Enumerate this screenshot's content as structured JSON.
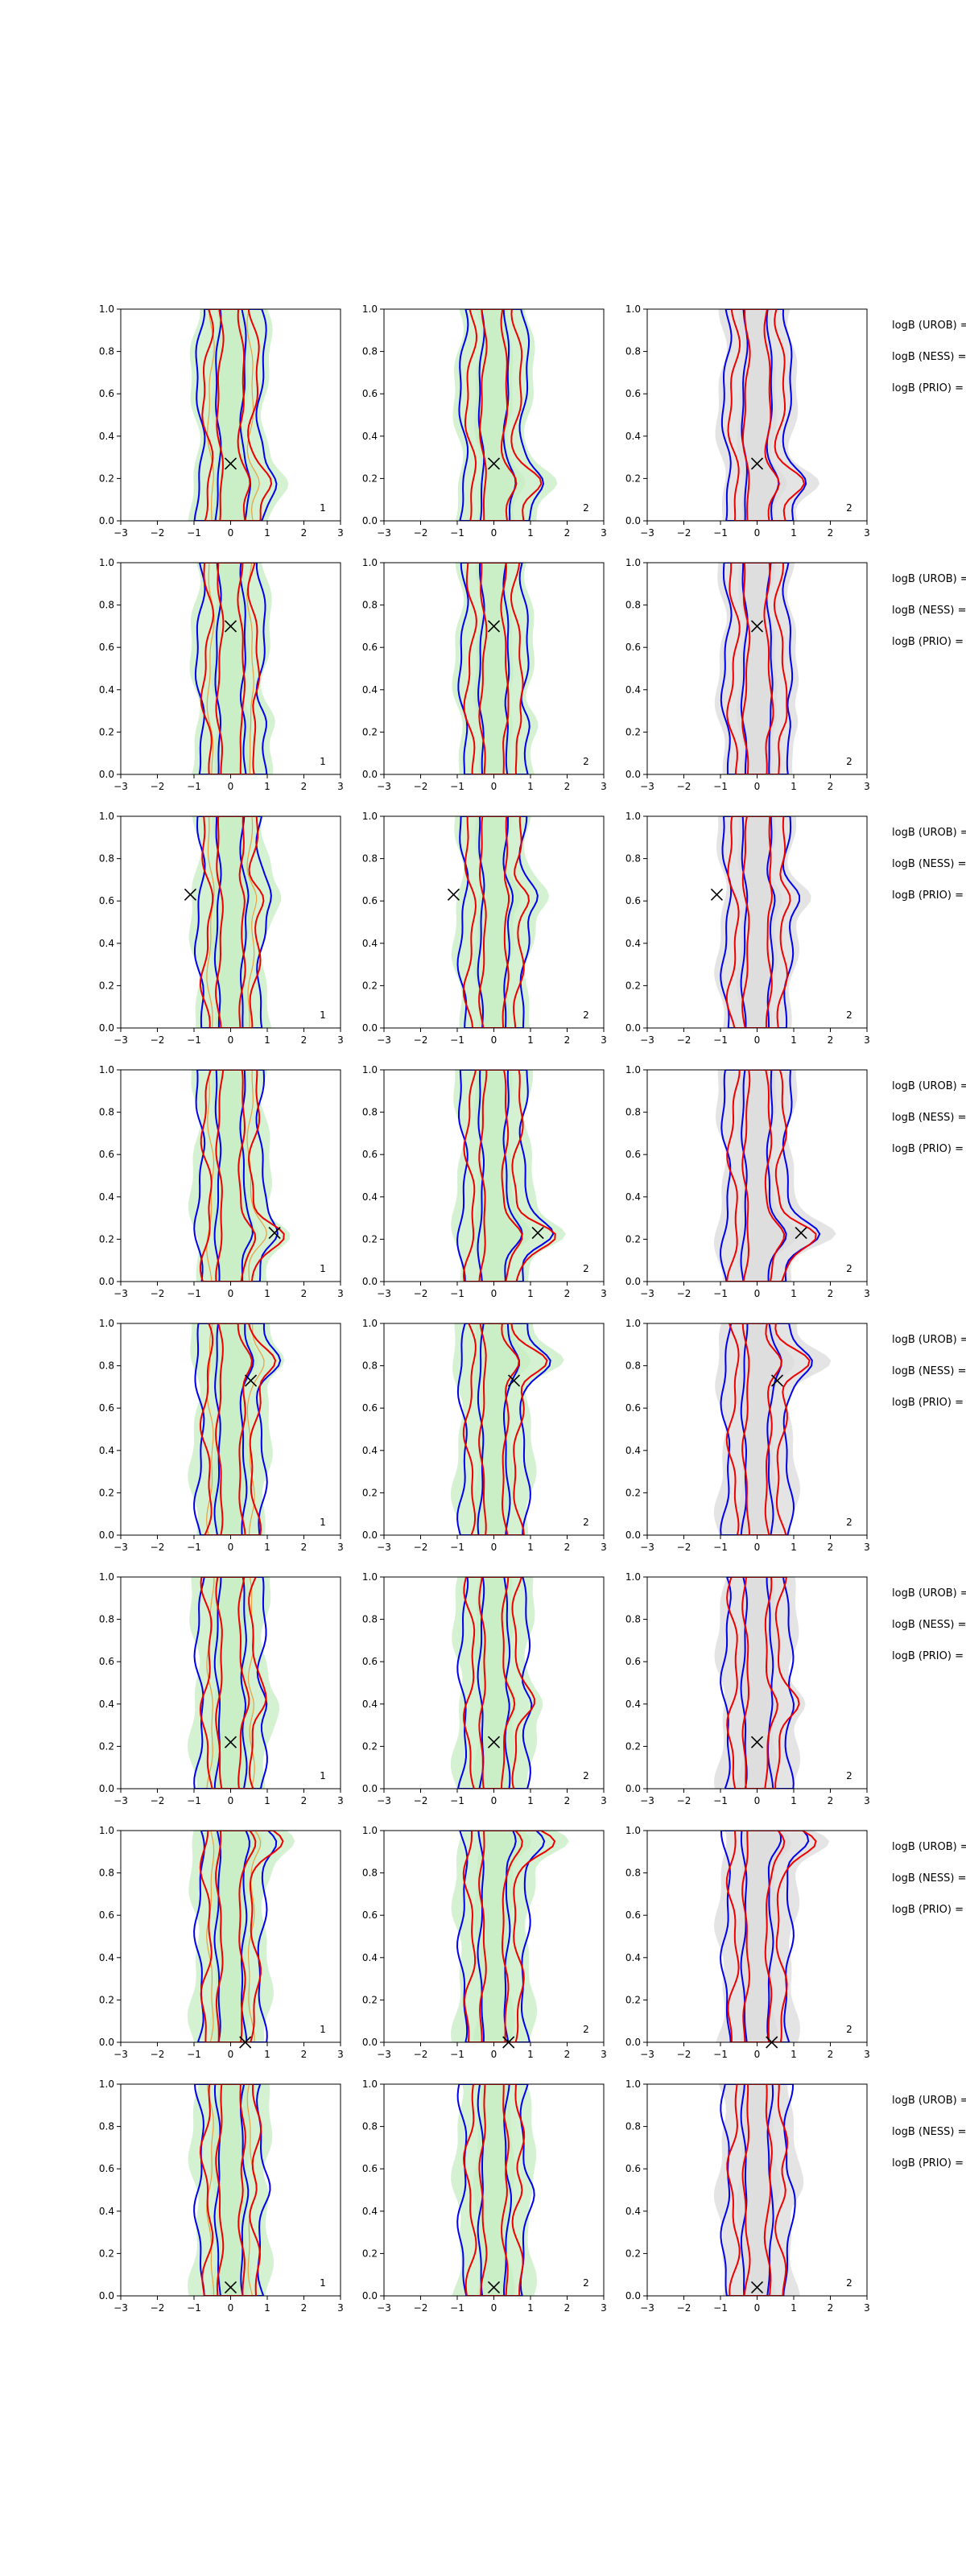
{
  "chart_data": {
    "type": "contour",
    "description_of_layout": "8 rows x 3 columns of contour density panels",
    "xlim": [
      -3,
      3
    ],
    "ylim": [
      0,
      1
    ],
    "xticks": [
      "−3",
      "−2",
      "−1",
      "0",
      "1",
      "2",
      "3"
    ],
    "yticks": [
      "0.0",
      "0.2",
      "0.4",
      "0.6",
      "0.8",
      "1.0"
    ],
    "colors": {
      "blue": "#0000ee",
      "red": "#ee0000",
      "green_fill": "#c9eec5",
      "grey_fill": "#dddddd",
      "orange": "#e8a040"
    },
    "column_labels": [
      "1",
      "2",
      "2"
    ],
    "logb_labels": [
      "logB (UROB) =",
      "logB (NESS) =",
      "logB (PRIO) ="
    ],
    "rows": [
      {
        "marker": {
          "x": 0.0,
          "y": 0.27
        }
      },
      {
        "marker": {
          "x": 0.0,
          "y": 0.7
        }
      },
      {
        "marker": {
          "x": -1.1,
          "y": 0.63
        }
      },
      {
        "marker": {
          "x": 1.2,
          "y": 0.23
        }
      },
      {
        "marker": {
          "x": 0.55,
          "y": 0.73
        }
      },
      {
        "marker": {
          "x": 0.0,
          "y": 0.22
        }
      },
      {
        "marker": {
          "x": 0.4,
          "y": 0.0
        }
      },
      {
        "marker": {
          "x": 0.0,
          "y": 0.04
        }
      }
    ]
  }
}
